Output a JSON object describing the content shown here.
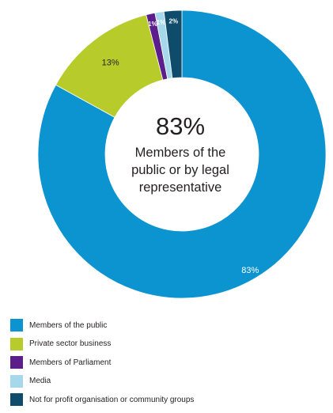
{
  "chart_data": {
    "type": "pie",
    "categories": [
      "Members of the public",
      "Private sector business",
      "Members of Parliament",
      "Media",
      "Not for profit organisation or community groups"
    ],
    "values": [
      83,
      13,
      1,
      1,
      2
    ],
    "value_labels": [
      "83%",
      "13%",
      "1%",
      "1%",
      "2%"
    ],
    "colors": [
      "#0b94d0",
      "#b7cc2a",
      "#5c1e8a",
      "#a6d8ec",
      "#0f4c6b"
    ],
    "donut": true,
    "start_angle_deg": 0,
    "direction": "clockwise",
    "center_text": {
      "value": "83%",
      "line1": "Members of the",
      "line2": "public or by legal",
      "line3": "representative"
    },
    "legend": {
      "placement": "bottom-left"
    }
  }
}
